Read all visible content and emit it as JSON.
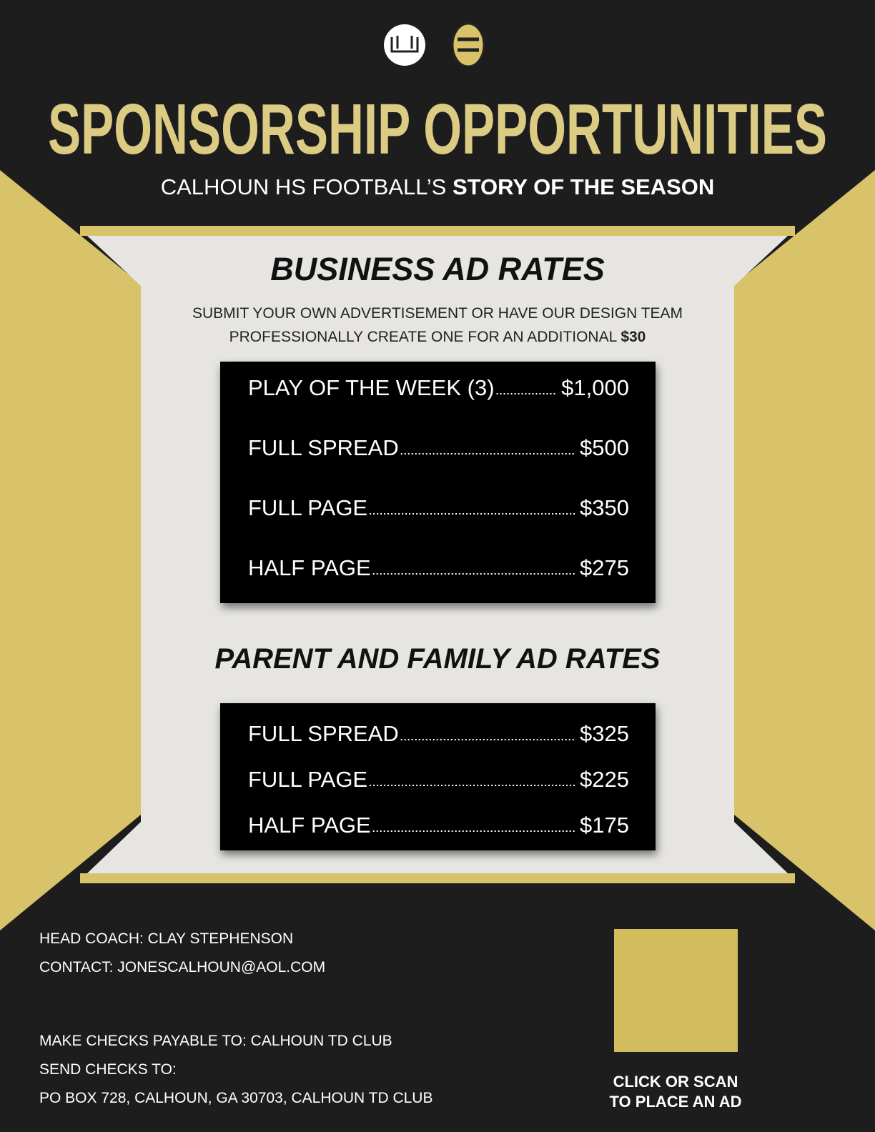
{
  "header": {
    "title": "SPONSORSHIP OPPORTUNITIES",
    "subtitle_regular": "CALHOUN HS FOOTBALL’S",
    "subtitle_bold": "STORY OF THE SEASON"
  },
  "business": {
    "title": "BUSINESS AD RATES",
    "note_line1": "SUBMIT YOUR OWN ADVERTISEMENT OR HAVE OUR DESIGN TEAM",
    "note_line2": "PROFESSIONALLY CREATE ONE FOR AN ADDITIONAL",
    "note_price": "$30",
    "rates": [
      {
        "item": "PLAY OF THE WEEK (3)",
        "price": "$1,000"
      },
      {
        "item": "FULL SPREAD",
        "price": "$500"
      },
      {
        "item": "FULL PAGE",
        "price": "$350"
      },
      {
        "item": "HALF PAGE",
        "price": "$275"
      }
    ]
  },
  "family": {
    "title": "PARENT AND FAMILY AD RATES",
    "rates": [
      {
        "item": "FULL SPREAD",
        "price": "$325"
      },
      {
        "item": "FULL PAGE",
        "price": "$225"
      },
      {
        "item": "HALF PAGE",
        "price": "$175"
      }
    ]
  },
  "footer": {
    "coach": "HEAD COACH: CLAY STEPHENSON",
    "contact": "CONTACT: JONESCALHOUN@AOL.COM",
    "payable": "MAKE CHECKS PAYABLE TO: CALHOUN TD CLUB",
    "send": "SEND CHECKS TO:",
    "address": "PO BOX 728, CALHOUN, GA 30703, CALHOUN TD CLUB",
    "cta_line1": "CLICK OR SCAN",
    "cta_line2": "TO PLACE AN AD"
  }
}
